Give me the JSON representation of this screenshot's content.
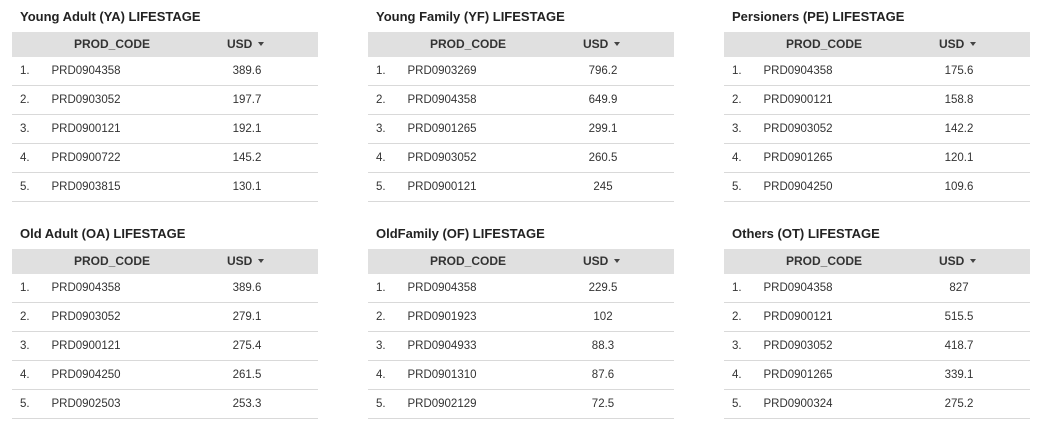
{
  "panels": [
    {
      "title": "Young Adult (YA) LIFESTAGE",
      "columns": {
        "code": "PROD_CODE",
        "usd": "USD"
      },
      "rows": [
        {
          "idx": "1.",
          "code": "PRD0904358",
          "usd": "389.6"
        },
        {
          "idx": "2.",
          "code": "PRD0903052",
          "usd": "197.7"
        },
        {
          "idx": "3.",
          "code": "PRD0900121",
          "usd": "192.1"
        },
        {
          "idx": "4.",
          "code": "PRD0900722",
          "usd": "145.2"
        },
        {
          "idx": "5.",
          "code": "PRD0903815",
          "usd": "130.1"
        }
      ]
    },
    {
      "title": "Young Family (YF) LIFESTAGE",
      "columns": {
        "code": "PROD_CODE",
        "usd": "USD"
      },
      "rows": [
        {
          "idx": "1.",
          "code": "PRD0903269",
          "usd": "796.2"
        },
        {
          "idx": "2.",
          "code": "PRD0904358",
          "usd": "649.9"
        },
        {
          "idx": "3.",
          "code": "PRD0901265",
          "usd": "299.1"
        },
        {
          "idx": "4.",
          "code": "PRD0903052",
          "usd": "260.5"
        },
        {
          "idx": "5.",
          "code": "PRD0900121",
          "usd": "245"
        }
      ]
    },
    {
      "title": "Persioners (PE) LIFESTAGE",
      "columns": {
        "code": "PROD_CODE",
        "usd": "USD"
      },
      "rows": [
        {
          "idx": "1.",
          "code": "PRD0904358",
          "usd": "175.6"
        },
        {
          "idx": "2.",
          "code": "PRD0900121",
          "usd": "158.8"
        },
        {
          "idx": "3.",
          "code": "PRD0903052",
          "usd": "142.2"
        },
        {
          "idx": "4.",
          "code": "PRD0901265",
          "usd": "120.1"
        },
        {
          "idx": "5.",
          "code": "PRD0904250",
          "usd": "109.6"
        }
      ]
    },
    {
      "title": "Old Adult (OA) LIFESTAGE",
      "columns": {
        "code": "PROD_CODE",
        "usd": "USD"
      },
      "rows": [
        {
          "idx": "1.",
          "code": "PRD0904358",
          "usd": "389.6"
        },
        {
          "idx": "2.",
          "code": "PRD0903052",
          "usd": "279.1"
        },
        {
          "idx": "3.",
          "code": "PRD0900121",
          "usd": "275.4"
        },
        {
          "idx": "4.",
          "code": "PRD0904250",
          "usd": "261.5"
        },
        {
          "idx": "5.",
          "code": "PRD0902503",
          "usd": "253.3"
        }
      ]
    },
    {
      "title": "OldFamily (OF) LIFESTAGE",
      "columns": {
        "code": "PROD_CODE",
        "usd": "USD"
      },
      "rows": [
        {
          "idx": "1.",
          "code": "PRD0904358",
          "usd": "229.5"
        },
        {
          "idx": "2.",
          "code": "PRD0901923",
          "usd": "102"
        },
        {
          "idx": "3.",
          "code": "PRD0904933",
          "usd": "88.3"
        },
        {
          "idx": "4.",
          "code": "PRD0901310",
          "usd": "87.6"
        },
        {
          "idx": "5.",
          "code": "PRD0902129",
          "usd": "72.5"
        }
      ]
    },
    {
      "title": "Others (OT) LIFESTAGE",
      "columns": {
        "code": "PROD_CODE",
        "usd": "USD"
      },
      "rows": [
        {
          "idx": "1.",
          "code": "PRD0904358",
          "usd": "827"
        },
        {
          "idx": "2.",
          "code": "PRD0900121",
          "usd": "515.5"
        },
        {
          "idx": "3.",
          "code": "PRD0903052",
          "usd": "418.7"
        },
        {
          "idx": "4.",
          "code": "PRD0901265",
          "usd": "339.1"
        },
        {
          "idx": "5.",
          "code": "PRD0900324",
          "usd": "275.2"
        }
      ]
    }
  ],
  "icons": {
    "sort": "sort-descending-icon"
  },
  "colors": {
    "header_bg": "#e0e0e0",
    "row_divider": "#d9d9d9",
    "text": "#333333"
  }
}
